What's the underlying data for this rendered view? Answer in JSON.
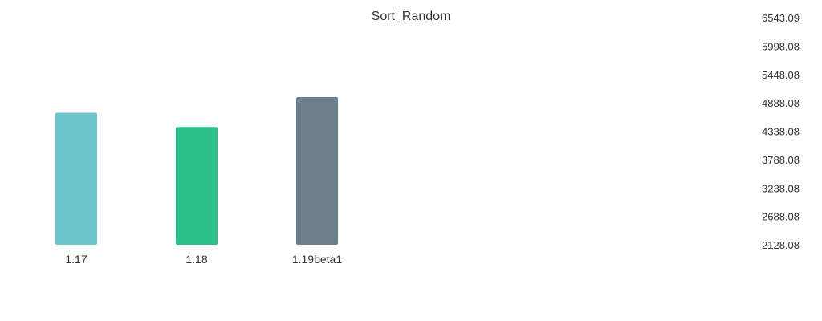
{
  "chart_data": {
    "type": "bar",
    "title": "Sort_Random",
    "xlabel": "",
    "ylabel": "",
    "categories": [
      "1.17",
      "1.18",
      "1.19beta1"
    ],
    "values": [
      4696,
      4420,
      5001
    ],
    "colors": [
      "#6cc4cc",
      "#2bc089",
      "#6d7f8b"
    ],
    "y_axis": {
      "position": "right",
      "ticks": [
        "2128.08",
        "2688.08",
        "3238.08",
        "3788.08",
        "4338.08",
        "4888.08",
        "5448.08",
        "5998.08",
        "6543.09"
      ],
      "ylim": [
        2128.08,
        6543.09
      ]
    },
    "grid": false,
    "legend": "none"
  }
}
